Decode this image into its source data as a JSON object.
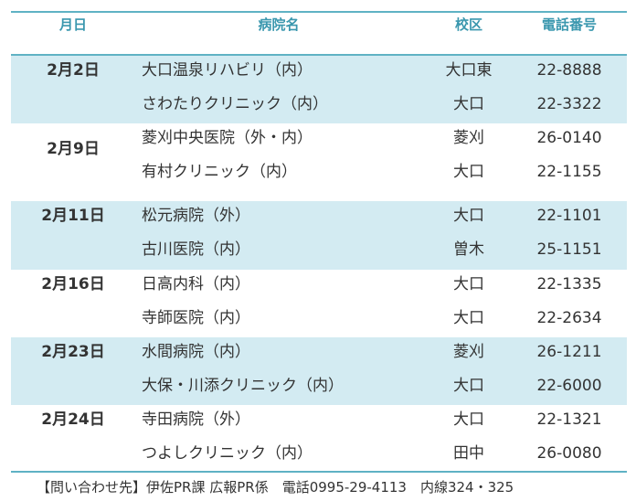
{
  "header": [
    "月日",
    "病院名",
    "校区",
    "電話番号"
  ],
  "groups": [
    {
      "date": "2月2日",
      "entries": [
        {
          "name": "大口温泉リハビリ（内）",
          "area": "大口東",
          "phone": "22-8888"
        },
        {
          "name": "さわたりクリニック（内）",
          "area": "大口",
          "phone": "22-3322"
        }
      ]
    },
    {
      "date": "2月9日",
      "entries": [
        {
          "name": "菱刈中央医院（外・内）",
          "area": "菱刈",
          "phone": "26-0140"
        },
        {
          "name": "有村クリニック（内）",
          "area": "大口",
          "phone": "22-1155"
        }
      ]
    },
    {
      "date": "2月11日",
      "entries": [
        {
          "name": "松元病院（外）",
          "area": "大口",
          "phone": "22-1101"
        },
        {
          "name": "古川医院（内）",
          "area": "曽木",
          "phone": "25-1151"
        }
      ]
    },
    {
      "date": "2月16日",
      "entries": [
        {
          "name": "日高内科（内）",
          "area": "大口",
          "phone": "22-1335"
        },
        {
          "name": "寺師医院（内）",
          "area": "大口",
          "phone": "22-2634"
        }
      ]
    },
    {
      "date": "2月23日",
      "entries": [
        {
          "name": "水間病院（内）",
          "area": "菱刈",
          "phone": "26-1211"
        },
        {
          "name": "大保・川添クリニック（内）",
          "area": "大口",
          "phone": "22-6000"
        }
      ]
    },
    {
      "date": "2月24日",
      "entries": [
        {
          "name": "寺田病院（外）",
          "area": "大口",
          "phone": "22-1321"
        },
        {
          "name": "つよしクリニック（内）",
          "area": "田中",
          "phone": "26-0080"
        }
      ]
    }
  ],
  "footer": "【問い合わせ先】伊佐PR課 広報PR係　電話0995-29-4113　内線324・325"
}
